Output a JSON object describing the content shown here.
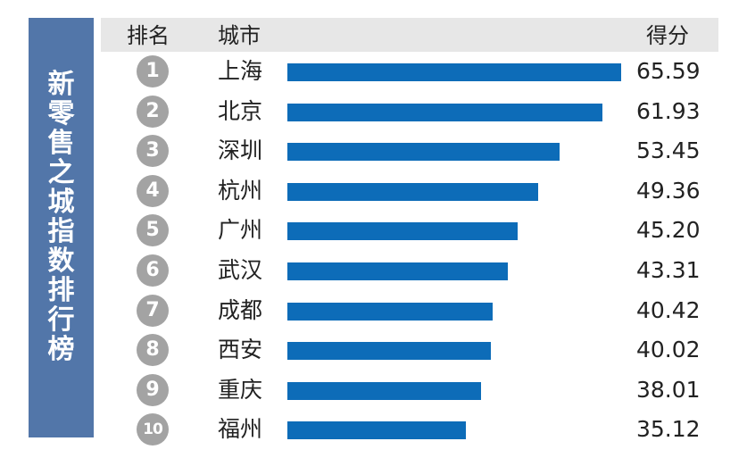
{
  "sidebar": {
    "title": "新零售之城指数排行榜"
  },
  "header": {
    "rank": "排名",
    "city": "城市",
    "score": "得分"
  },
  "chart_data": {
    "type": "bar",
    "orientation": "horizontal",
    "title": "新零售之城指数排行榜",
    "columns": [
      "排名",
      "城市",
      "得分"
    ],
    "ranks": [
      "1",
      "2",
      "3",
      "4",
      "5",
      "6",
      "7",
      "8",
      "9",
      "10"
    ],
    "categories": [
      "上海",
      "北京",
      "深圳",
      "杭州",
      "广州",
      "武汉",
      "成都",
      "西安",
      "重庆",
      "福州"
    ],
    "values": [
      65.59,
      61.93,
      53.45,
      49.36,
      45.2,
      43.31,
      40.42,
      40.02,
      38.01,
      35.12
    ],
    "value_labels": [
      "65.59",
      "61.93",
      "53.45",
      "49.36",
      "45.20",
      "43.31",
      "40.42",
      "40.02",
      "38.01",
      "35.12"
    ],
    "xlim": [
      0,
      65.59
    ],
    "grid": false
  },
  "colors": {
    "bar": "#0d6cb8",
    "sidebar": "#5276a9",
    "header": "#e7e7e7",
    "badge": "#a3a3a3"
  }
}
